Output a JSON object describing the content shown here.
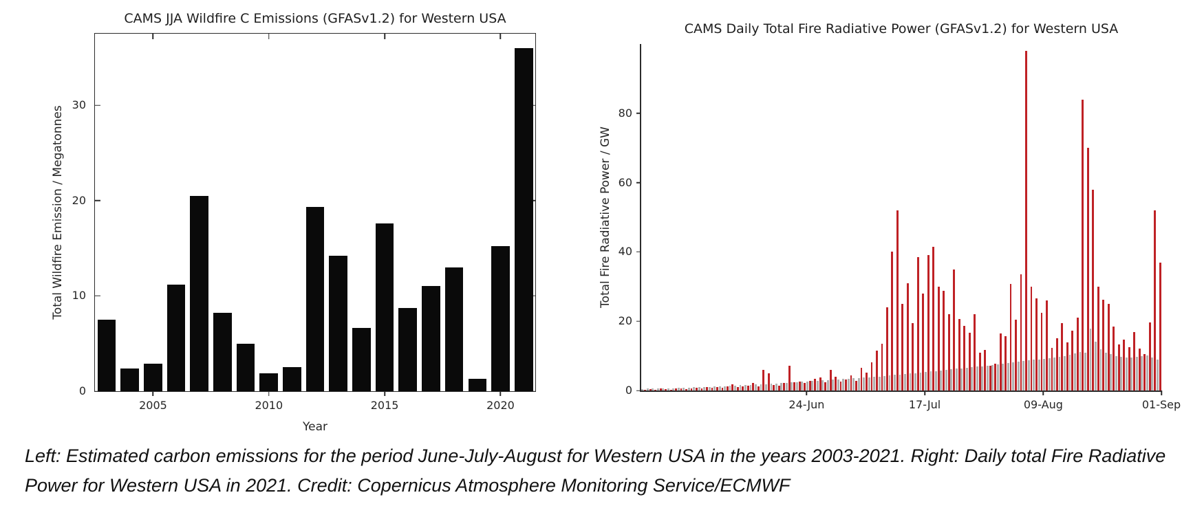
{
  "caption": {
    "text": "Left: Estimated carbon emissions for the period June-July-August for Western USA in the years 2003-2021. Right: Daily total Fire Radiative Power for Western USA in 2021. Credit: Copernicus Atmosphere Monitoring Service/ECMWF"
  },
  "colors": {
    "black_bar": "#0a0a0a",
    "grey_bar": "#b1b1b1",
    "red_bar": "#bf2125",
    "axis": "#2b2b2b"
  },
  "chart_data": [
    {
      "type": "bar",
      "title": "CAMS JJA Wildfire C Emissions (GFASv1.2) for Western USA",
      "xlabel": "Year",
      "ylabel": "Total Wildfire Emission / Megatonnes",
      "categories": [
        2003,
        2004,
        2005,
        2006,
        2007,
        2008,
        2009,
        2010,
        2011,
        2012,
        2013,
        2014,
        2015,
        2016,
        2017,
        2018,
        2019,
        2020,
        2021
      ],
      "values": [
        7.5,
        2.4,
        2.9,
        11.2,
        20.5,
        8.2,
        5.0,
        1.9,
        2.5,
        19.3,
        14.2,
        6.6,
        17.6,
        8.7,
        11.0,
        13.0,
        1.3,
        15.2,
        36.0
      ],
      "bar_color": "#0a0a0a",
      "ylim": [
        0,
        37.5
      ],
      "yticks": [
        0,
        10,
        20,
        30
      ],
      "xticks": [
        "2005",
        "2010",
        "2015",
        "2020"
      ],
      "xtick_positions_pct": [
        13.2,
        39.5,
        65.8,
        92.1
      ],
      "grid": false,
      "legend": "none"
    },
    {
      "type": "bar",
      "title": "CAMS Daily Total Fire Radiative Power (GFASv1.2) for Western USA",
      "xlabel": "",
      "ylabel": "Total Fire Radiative Power / GW",
      "x": [
        "23-May",
        "24-May",
        "25-May",
        "26-May",
        "27-May",
        "28-May",
        "29-May",
        "30-May",
        "31-May",
        "01-Jun",
        "02-Jun",
        "03-Jun",
        "04-Jun",
        "05-Jun",
        "06-Jun",
        "07-Jun",
        "08-Jun",
        "09-Jun",
        "10-Jun",
        "11-Jun",
        "12-Jun",
        "13-Jun",
        "14-Jun",
        "15-Jun",
        "16-Jun",
        "17-Jun",
        "18-Jun",
        "19-Jun",
        "20-Jun",
        "21-Jun",
        "22-Jun",
        "23-Jun",
        "24-Jun",
        "25-Jun",
        "26-Jun",
        "27-Jun",
        "28-Jun",
        "29-Jun",
        "30-Jun",
        "01-Jul",
        "02-Jul",
        "03-Jul",
        "04-Jul",
        "05-Jul",
        "06-Jul",
        "07-Jul",
        "08-Jul",
        "09-Jul",
        "10-Jul",
        "11-Jul",
        "12-Jul",
        "13-Jul",
        "14-Jul",
        "15-Jul",
        "16-Jul",
        "17-Jul",
        "18-Jul",
        "19-Jul",
        "20-Jul",
        "21-Jul",
        "22-Jul",
        "23-Jul",
        "24-Jul",
        "25-Jul",
        "26-Jul",
        "27-Jul",
        "28-Jul",
        "29-Jul",
        "30-Jul",
        "31-Jul",
        "01-Aug",
        "02-Aug",
        "03-Aug",
        "04-Aug",
        "05-Aug",
        "06-Aug",
        "07-Aug",
        "08-Aug",
        "09-Aug",
        "10-Aug",
        "11-Aug",
        "12-Aug",
        "13-Aug",
        "14-Aug",
        "15-Aug",
        "16-Aug",
        "17-Aug",
        "18-Aug",
        "19-Aug",
        "20-Aug",
        "21-Aug",
        "22-Aug",
        "23-Aug",
        "24-Aug",
        "25-Aug",
        "26-Aug",
        "27-Aug",
        "28-Aug",
        "29-Aug",
        "30-Aug",
        "31-Aug"
      ],
      "series": [
        {
          "name": "grey",
          "color": "#b1b1b1",
          "values": [
            0.45,
            0.5,
            0.5,
            0.55,
            0.6,
            0.6,
            0.65,
            0.7,
            0.75,
            0.8,
            0.9,
            0.9,
            1.0,
            1.0,
            1.1,
            1.2,
            1.2,
            1.3,
            1.4,
            1.5,
            1.5,
            1.6,
            1.7,
            1.7,
            1.8,
            1.9,
            2.0,
            2.1,
            2.2,
            2.3,
            2.4,
            2.5,
            2.6,
            2.7,
            2.8,
            2.9,
            3.0,
            3.1,
            3.2,
            3.3,
            3.4,
            3.5,
            3.6,
            3.7,
            3.8,
            3.9,
            4.0,
            4.2,
            4.3,
            4.5,
            4.6,
            4.8,
            4.9,
            5.0,
            5.2,
            5.3,
            5.5,
            5.6,
            5.8,
            6.0,
            6.1,
            6.3,
            6.4,
            6.6,
            6.7,
            6.9,
            7.0,
            7.2,
            7.3,
            7.5,
            7.8,
            8.0,
            8.2,
            8.4,
            8.5,
            8.7,
            8.9,
            9.0,
            9.2,
            9.4,
            9.6,
            9.8,
            10.0,
            10.4,
            10.8,
            11.2,
            11.0,
            17.8,
            14.0,
            12.0,
            11.0,
            10.5,
            10.0,
            9.8,
            9.6,
            9.5,
            9.7,
            10.0,
            10.2,
            9.5,
            9.0
          ]
        },
        {
          "name": "red (2021)",
          "color": "#bf2125",
          "values": [
            0.2,
            0.4,
            0.3,
            0.5,
            0.4,
            0.3,
            0.5,
            0.6,
            0.4,
            0.5,
            0.8,
            0.6,
            0.9,
            0.7,
            1.0,
            0.8,
            1.2,
            1.8,
            0.9,
            1.1,
            1.4,
            2.2,
            1.2,
            5.9,
            4.9,
            1.6,
            1.4,
            2.1,
            7.1,
            2.4,
            2.6,
            2.2,
            2.8,
            3.4,
            3.8,
            2.4,
            5.9,
            3.9,
            2.6,
            3.2,
            4.4,
            2.8,
            6.6,
            5.2,
            8.2,
            11.5,
            13.5,
            24,
            40,
            52,
            25,
            31,
            19.5,
            38.5,
            28,
            39,
            41.5,
            30,
            28.8,
            22,
            35,
            20.6,
            18.6,
            16.7,
            22.1,
            10.9,
            11.8,
            7.2,
            7.8,
            16.4,
            15.7,
            30.8,
            20.5,
            33.6,
            98,
            30,
            26.5,
            22.5,
            26,
            12.3,
            15,
            19.5,
            13.8,
            17.2,
            21,
            84,
            70,
            58,
            30,
            26.1,
            25,
            18.5,
            13.2,
            14.7,
            12.5,
            16.8,
            12.1,
            10.5,
            19.6,
            52,
            37
          ]
        }
      ],
      "ylim": [
        0,
        100
      ],
      "yticks": [
        0,
        20,
        40,
        60,
        80
      ],
      "xticks": [
        "24-Jun",
        "17-Jul",
        "09-Aug",
        "01-Sep"
      ],
      "xtick_positions_pct": [
        31.8,
        54.5,
        77.3,
        100
      ],
      "grid": false,
      "legend": "none"
    }
  ]
}
